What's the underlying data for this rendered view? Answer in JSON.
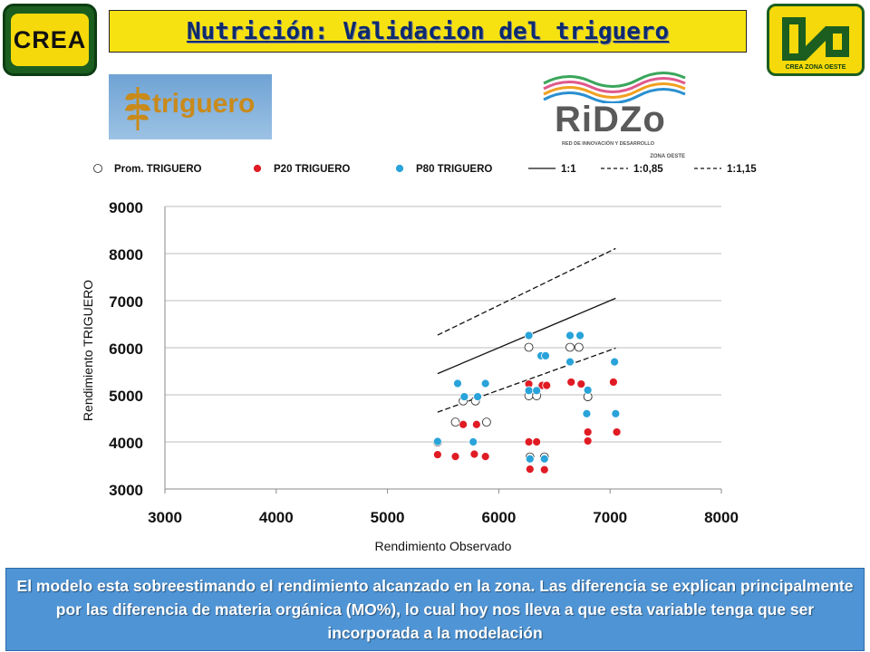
{
  "header": {
    "title": "Nutrición: Validacion del triguero",
    "logo_left_text": "CREA",
    "logo_right_caption": "CREA  ZONA OESTE",
    "logo_triguero_text": "triguero",
    "logo_ridzo_text": "RiDZo",
    "logo_ridzo_sub": "RED DE INNOVACIÓN Y DESARROLLO",
    "logo_ridzo_sub2": "ZONA OESTE"
  },
  "colors": {
    "title_bg": "#f7e211",
    "title_text": "#0c2a6e",
    "series_prom": "#ffffff",
    "series_p20": "#e01b24",
    "series_p80": "#29a3d9",
    "note_bg": "#4f95d6"
  },
  "chart_data": {
    "type": "scatter",
    "xlabel": "Rendimiento Observado",
    "ylabel": "Rendimiento TRIGUERO",
    "xlim": [
      3000,
      8000
    ],
    "ylim": [
      3000,
      9000
    ],
    "xticks": [
      3000,
      4000,
      5000,
      6000,
      7000,
      8000
    ],
    "yticks": [
      3000,
      4000,
      5000,
      6000,
      7000,
      8000,
      9000
    ],
    "grid": "horizontal",
    "legend_position": "top",
    "series": [
      {
        "name": "Prom. TRIGUERO",
        "marker": "hollow-circle",
        "points": [
          [
            5450,
            4000
          ],
          [
            5610,
            4420
          ],
          [
            5680,
            4870
          ],
          [
            5790,
            4870
          ],
          [
            5890,
            4420
          ],
          [
            6270,
            6010
          ],
          [
            6270,
            4980
          ],
          [
            6340,
            4980
          ],
          [
            6280,
            3680
          ],
          [
            6410,
            3680
          ],
          [
            6640,
            6010
          ],
          [
            6720,
            6010
          ],
          [
            6800,
            4960
          ],
          [
            6800,
            4960
          ]
        ]
      },
      {
        "name": "P20 TRIGUERO",
        "marker": "filled-circle",
        "points": [
          [
            5450,
            3730
          ],
          [
            5610,
            3690
          ],
          [
            5680,
            4370
          ],
          [
            5780,
            3740
          ],
          [
            5800,
            4370
          ],
          [
            5880,
            3690
          ],
          [
            6270,
            5230
          ],
          [
            6270,
            4000
          ],
          [
            6280,
            3420
          ],
          [
            6340,
            4000
          ],
          [
            6390,
            5200
          ],
          [
            6430,
            5200
          ],
          [
            6410,
            3410
          ],
          [
            6650,
            5270
          ],
          [
            6740,
            5230
          ],
          [
            6800,
            4210
          ],
          [
            6800,
            4020
          ],
          [
            7030,
            5270
          ],
          [
            7060,
            4210
          ]
        ]
      },
      {
        "name": "P80 TRIGUERO",
        "marker": "filled-circle",
        "points": [
          [
            5450,
            4010
          ],
          [
            5630,
            5240
          ],
          [
            5690,
            4960
          ],
          [
            5770,
            4000
          ],
          [
            5810,
            4960
          ],
          [
            5880,
            5240
          ],
          [
            6270,
            6260
          ],
          [
            6270,
            5090
          ],
          [
            6280,
            3640
          ],
          [
            6340,
            5090
          ],
          [
            6380,
            5830
          ],
          [
            6420,
            5830
          ],
          [
            6410,
            3640
          ],
          [
            6640,
            6260
          ],
          [
            6640,
            5700
          ],
          [
            6730,
            6260
          ],
          [
            6790,
            4600
          ],
          [
            6800,
            5100
          ],
          [
            7040,
            5700
          ],
          [
            7050,
            4600
          ]
        ]
      },
      {
        "name": "1:1",
        "style": "solid",
        "points": [
          [
            5450,
            5450
          ],
          [
            7050,
            7050
          ]
        ]
      },
      {
        "name": "1:0,85",
        "style": "dashed",
        "points": [
          [
            5450,
            4632
          ],
          [
            7050,
            5992
          ]
        ]
      },
      {
        "name": "1:1,15",
        "style": "dashed",
        "points": [
          [
            5450,
            6268
          ],
          [
            7050,
            8108
          ]
        ]
      }
    ]
  },
  "note": {
    "text": "El modelo esta sobreestimando el rendimiento alcanzado en la zona. Las diferencia se explican principalmente por las diferencia de materia orgánica (MO%), lo cual hoy nos lleva a que esta variable tenga que ser incorporada a la modelación"
  }
}
